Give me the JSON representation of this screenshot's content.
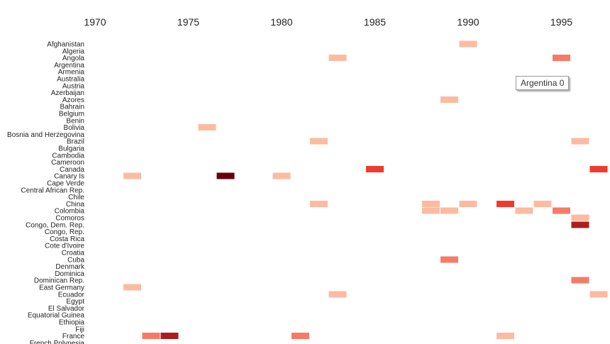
{
  "chart_data": {
    "type": "heatmap",
    "title": "",
    "xlabel": "",
    "ylabel": "",
    "x_ticks": [
      1970,
      1975,
      1980,
      1985,
      1990,
      1995
    ],
    "xlim": [
      1968,
      1997
    ],
    "countries": [
      "Afghanistan",
      "Algeria",
      "Angola",
      "Argentina",
      "Armenia",
      "Australia",
      "Austria",
      "Azerbaijan",
      "Azores",
      "Bahrain",
      "Belgium",
      "Benin",
      "Bolivia",
      "Bosnia and Herzegovina",
      "Brazil",
      "Bulgaria",
      "Cambodia",
      "Cameroon",
      "Canada",
      "Canary Is",
      "Cape Verde",
      "Central African Rep.",
      "Chile",
      "China",
      "Colombia",
      "Comoros",
      "Congo, Dem. Rep.",
      "Congo, Rep.",
      "Costa Rica",
      "Cote d'Ivoire",
      "Croatia",
      "Cuba",
      "Denmark",
      "Dominica",
      "Dominican Rep.",
      "East Germany",
      "Ecuador",
      "Egypt",
      "El Salvador",
      "Equatorial Guinea",
      "Ethiopia",
      "Fiji",
      "France",
      "French Polynesia"
    ],
    "color_scale": {
      "low": "#fcbba1",
      "mid": "#ef3b2c",
      "high": "#67000d"
    },
    "cells": [
      {
        "country": "Afghanistan",
        "year": 1990,
        "value": 1
      },
      {
        "country": "Angola",
        "year": 1983,
        "value": 1
      },
      {
        "country": "Angola",
        "year": 1995,
        "value": 2
      },
      {
        "country": "Azores",
        "year": 1989,
        "value": 1
      },
      {
        "country": "Bolivia",
        "year": 1976,
        "value": 1
      },
      {
        "country": "Brazil",
        "year": 1982,
        "value": 1
      },
      {
        "country": "Brazil",
        "year": 1996,
        "value": 1
      },
      {
        "country": "Canada",
        "year": 1985,
        "value": 3
      },
      {
        "country": "Canada",
        "year": 1997,
        "value": 3
      },
      {
        "country": "Canary Is",
        "year": 1972,
        "value": 1
      },
      {
        "country": "Canary Is",
        "year": 1977,
        "value": 5
      },
      {
        "country": "Canary Is",
        "year": 1980,
        "value": 1
      },
      {
        "country": "China",
        "year": 1982,
        "value": 1
      },
      {
        "country": "China",
        "year": 1988,
        "value": 1
      },
      {
        "country": "China",
        "year": 1990,
        "value": 1
      },
      {
        "country": "China",
        "year": 1992,
        "value": 3
      },
      {
        "country": "China",
        "year": 1994,
        "value": 1
      },
      {
        "country": "Colombia",
        "year": 1988,
        "value": 1
      },
      {
        "country": "Colombia",
        "year": 1989,
        "value": 1
      },
      {
        "country": "Colombia",
        "year": 1993,
        "value": 1
      },
      {
        "country": "Colombia",
        "year": 1995,
        "value": 2
      },
      {
        "country": "Comoros",
        "year": 1996,
        "value": 1
      },
      {
        "country": "Congo, Dem. Rep.",
        "year": 1996,
        "value": 4
      },
      {
        "country": "Cuba",
        "year": 1989,
        "value": 2
      },
      {
        "country": "Dominican Rep.",
        "year": 1996,
        "value": 2
      },
      {
        "country": "East Germany",
        "year": 1972,
        "value": 1
      },
      {
        "country": "Ecuador",
        "year": 1983,
        "value": 1
      },
      {
        "country": "Ecuador",
        "year": 1997,
        "value": 1
      },
      {
        "country": "France",
        "year": 1973,
        "value": 2
      },
      {
        "country": "France",
        "year": 1974,
        "value": 4
      },
      {
        "country": "France",
        "year": 1981,
        "value": 2
      },
      {
        "country": "France",
        "year": 1992,
        "value": 1
      }
    ],
    "tooltip": {
      "text": "Argentina 0"
    }
  }
}
